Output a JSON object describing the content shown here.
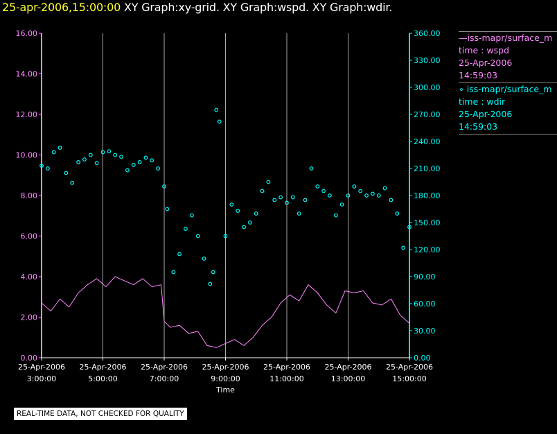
{
  "header": {
    "timestamp": "25-apr-2006,15:00:00",
    "graphs": "XY Graph:xy-grid.  XY Graph:wspd.  XY Graph:wdir."
  },
  "legend": [
    {
      "series": "iss-mapr/surface_m",
      "line1": "—iss-mapr/surface_m",
      "axis": "time : wspd",
      "date": "25-Apr-2006",
      "time": "14:59:03",
      "color": "#ff88ff"
    },
    {
      "series": "iss-mapr/surface_m",
      "line1": "∘ iss-mapr/surface_m",
      "axis": "time : wdir",
      "date": "25-Apr-2006",
      "time": "14:59:03",
      "color": "#00ffff"
    }
  ],
  "footer": {
    "warning": "REAL-TIME DATA, NOT CHECKED FOR QUALITY"
  },
  "chart_data": {
    "type": "line",
    "xlabel": "Time",
    "x_ticks": [
      {
        "t": 3,
        "date": "25-Apr-2006",
        "time": "3:00:00"
      },
      {
        "t": 5,
        "date": "25-Apr-2006",
        "time": "5:00:00"
      },
      {
        "t": 7,
        "date": "25-Apr-2006",
        "time": "7:00:00"
      },
      {
        "t": 9,
        "date": "25-Apr-2006",
        "time": "9:00:00"
      },
      {
        "t": 11,
        "date": "25-Apr-2006",
        "time": "11:00:00"
      },
      {
        "t": 13,
        "date": "25-Apr-2006",
        "time": "13:00:00"
      },
      {
        "t": 15,
        "date": "25-Apr-2006",
        "time": "15:00:00"
      }
    ],
    "xlim": [
      3,
      15
    ],
    "y_left": {
      "ylim": [
        0,
        16
      ],
      "ticks": [
        "0.00",
        "2.00",
        "4.00",
        "6.00",
        "8.00",
        "10.00",
        "12.00",
        "14.00",
        "16.00"
      ],
      "color": "#ff88ff"
    },
    "y_right": {
      "ylim": [
        0,
        360
      ],
      "ticks": [
        "0.00",
        "30.00",
        "60.00",
        "90.00",
        "120.00",
        "150.00",
        "180.00",
        "210.00",
        "240.00",
        "270.00",
        "300.00",
        "330.00",
        "360.00"
      ],
      "color": "#00ffff"
    },
    "grid": "vertical lines at each x tick",
    "series": [
      {
        "axis": "time : wspd",
        "style": "line",
        "color": "#ff88ff",
        "y_axis": "left",
        "x": [
          3.0,
          3.3,
          3.6,
          3.9,
          4.2,
          4.5,
          4.8,
          5.1,
          5.4,
          5.7,
          6.0,
          6.3,
          6.6,
          6.9,
          7.0,
          7.2,
          7.5,
          7.8,
          8.1,
          8.4,
          8.7,
          9.0,
          9.3,
          9.6,
          9.9,
          10.2,
          10.5,
          10.8,
          11.1,
          11.4,
          11.7,
          12.0,
          12.3,
          12.6,
          12.9,
          13.2,
          13.5,
          13.8,
          14.1,
          14.4,
          14.7,
          15.0
        ],
        "values": [
          2.7,
          2.3,
          2.9,
          2.5,
          3.2,
          3.6,
          3.9,
          3.5,
          4.0,
          3.8,
          3.6,
          3.9,
          3.5,
          3.6,
          1.8,
          1.5,
          1.6,
          1.2,
          1.3,
          0.6,
          0.5,
          0.7,
          0.9,
          0.6,
          1.0,
          1.6,
          2.0,
          2.7,
          3.1,
          2.8,
          3.6,
          3.2,
          2.6,
          2.2,
          3.3,
          3.2,
          3.3,
          2.7,
          2.6,
          2.9,
          2.1,
          1.7
        ]
      },
      {
        "axis": "time : wdir",
        "style": "scatter",
        "color": "#00ffff",
        "y_axis": "right",
        "x": [
          3.0,
          3.2,
          3.4,
          3.6,
          3.8,
          4.0,
          4.2,
          4.4,
          4.6,
          4.8,
          5.0,
          5.2,
          5.4,
          5.6,
          5.8,
          6.0,
          6.2,
          6.4,
          6.6,
          6.8,
          7.0,
          7.1,
          7.3,
          7.5,
          7.7,
          7.9,
          8.1,
          8.3,
          8.5,
          8.6,
          8.7,
          8.8,
          9.0,
          9.2,
          9.4,
          9.6,
          9.8,
          10.0,
          10.2,
          10.4,
          10.6,
          10.8,
          11.0,
          11.2,
          11.4,
          11.6,
          11.8,
          12.0,
          12.2,
          12.4,
          12.6,
          12.8,
          13.0,
          13.2,
          13.4,
          13.6,
          13.8,
          14.0,
          14.2,
          14.4,
          14.6,
          14.8,
          15.0
        ],
        "values": [
          213,
          210,
          228,
          233,
          205,
          194,
          217,
          220,
          225,
          216,
          228,
          229,
          225,
          223,
          208,
          214,
          217,
          222,
          219,
          210,
          190,
          165,
          95,
          115,
          143,
          158,
          135,
          110,
          82,
          95,
          275,
          262,
          135,
          170,
          163,
          145,
          150,
          160,
          185,
          195,
          175,
          178,
          172,
          178,
          160,
          175,
          210,
          190,
          185,
          180,
          158,
          170,
          180,
          190,
          185,
          180,
          182,
          180,
          188,
          175,
          160,
          122,
          145
        ]
      }
    ]
  }
}
